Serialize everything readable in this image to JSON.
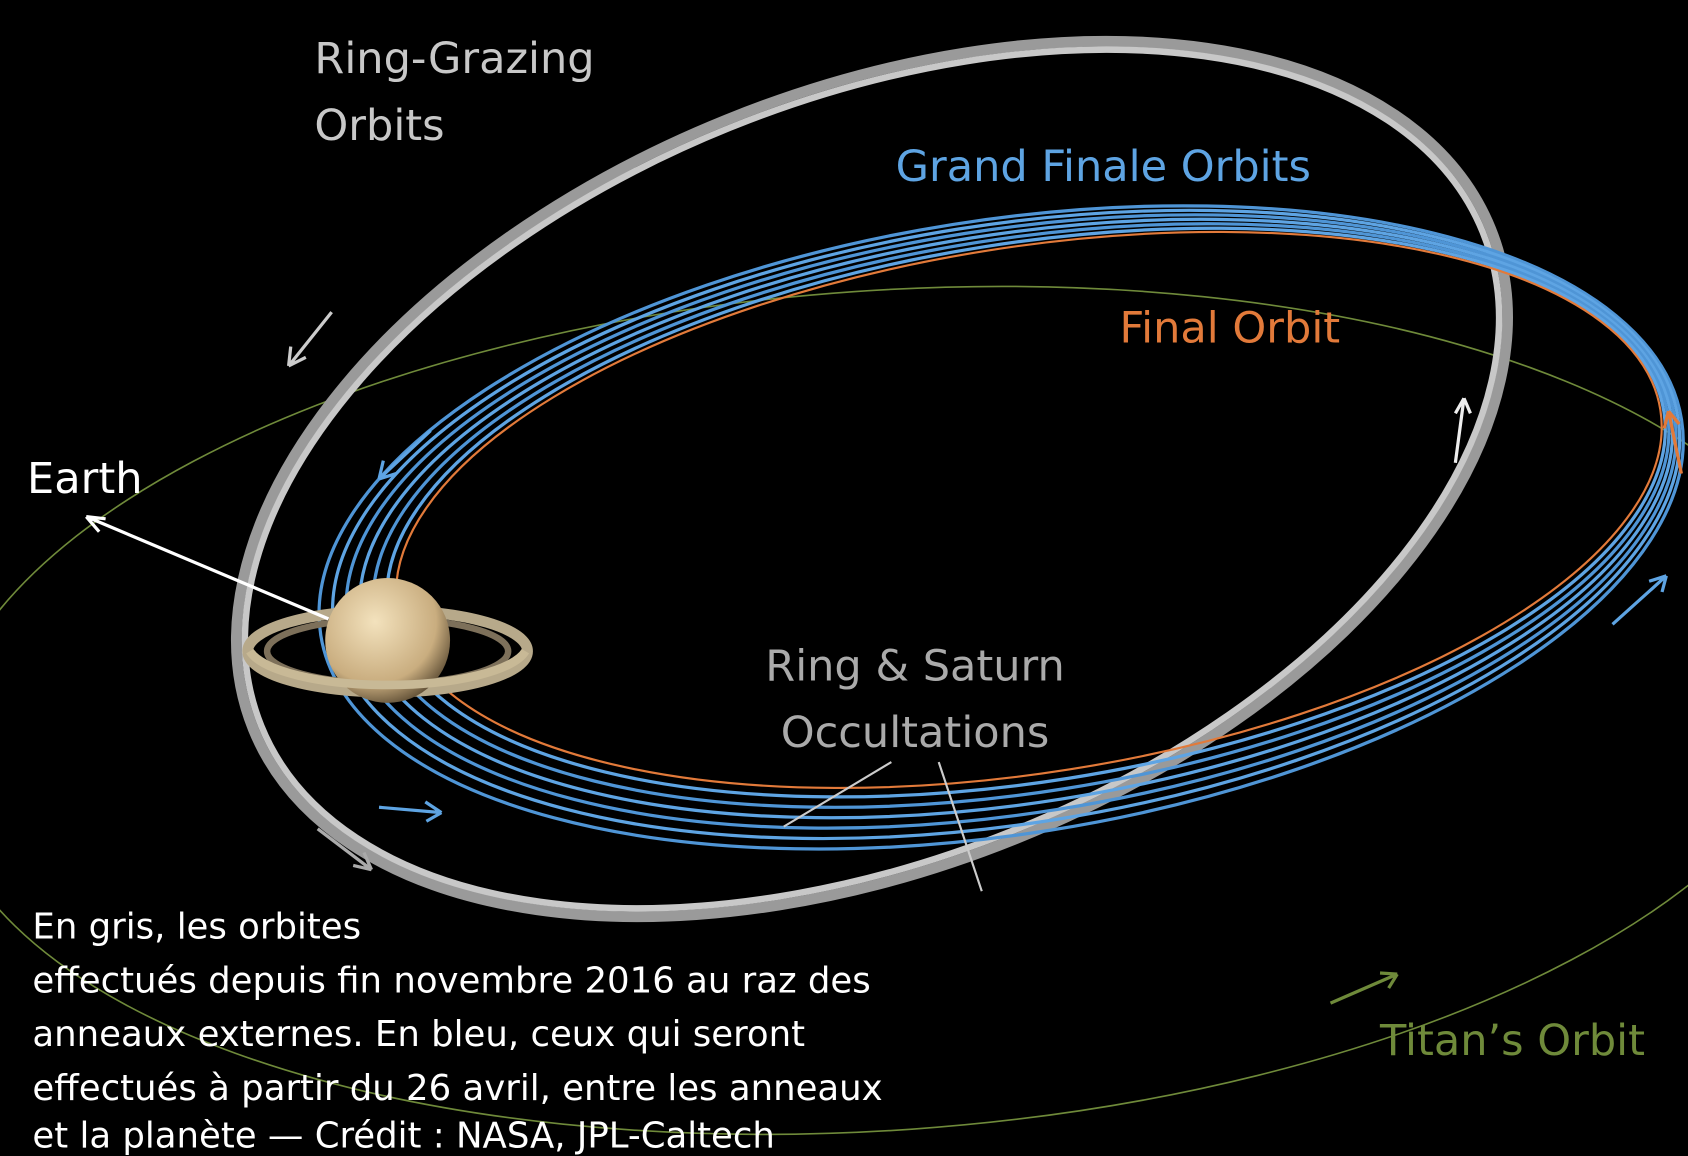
{
  "labels": {
    "ring_grazing": [
      "Ring-Grazing",
      "Orbits"
    ],
    "grand_finale": "Grand Finale Orbits",
    "final_orbit": "Final Orbit",
    "earth": "Earth",
    "occultations": [
      "Ring & Saturn",
      "Occultations"
    ],
    "titan": "Titan’s Orbit"
  },
  "caption": [
    "En gris, les orbites",
    "effectués depuis fin novembre 2016 au raz des",
    "anneaux externes. En bleu, ceux qui seront",
    "effectués à partir du 26 avril, entre les anneaux",
    "et la planète — Crédit : NASA, JPL-Caltech"
  ]
}
